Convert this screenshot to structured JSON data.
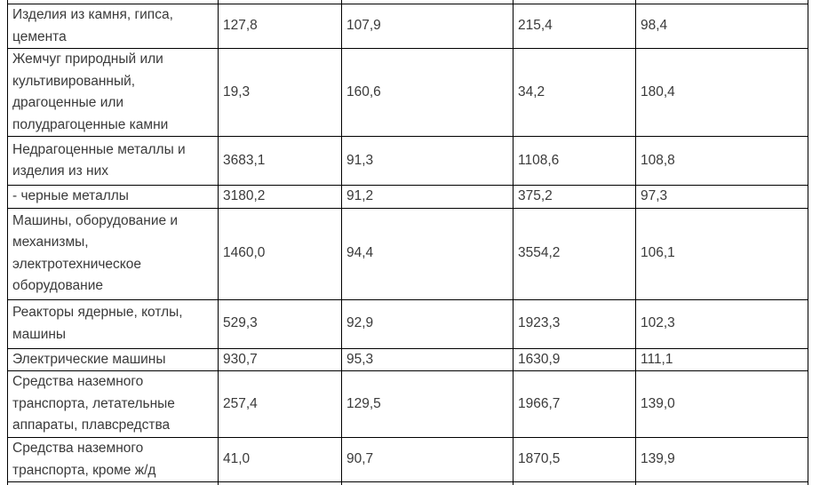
{
  "colors": {
    "background": "#ffffff",
    "border": "#000000",
    "text": "#3a3a3a"
  },
  "table": {
    "description_visible_text_only": "",
    "rows": [
      {
        "category": "Изделия из камня, гипса,\nцемента",
        "values": [
          "127,8",
          "107,9",
          "215,4",
          "98,4"
        ]
      },
      {
        "category": "Жемчуг природный или\nкультивированный,\nдрагоценные или\nполудрагоценные камни",
        "values": [
          "19,3",
          "160,6",
          "34,2",
          "180,4"
        ]
      },
      {
        "category": "Недрагоценные металлы и\nизделия из них",
        "values": [
          "3683,1",
          "91,3",
          "1108,6",
          "108,8"
        ]
      },
      {
        "category": "- черные металлы",
        "values": [
          "3180,2",
          "91,2",
          "375,2",
          "97,3"
        ]
      },
      {
        "category": "Машины, оборудование и\nмеханизмы,\nэлектротехническое\nоборудование",
        "values": [
          "1460,0",
          "94,4",
          "3554,2",
          "106,1"
        ]
      },
      {
        "category": "Реакторы ядерные, котлы,\nмашины",
        "values": [
          "529,3",
          "92,9",
          "1923,3",
          "102,3"
        ]
      },
      {
        "category": "Электрические машины",
        "values": [
          "930,7",
          "95,3",
          "1630,9",
          "111,1"
        ]
      },
      {
        "category": "Средства наземного\nтранспорта, летательные\nаппараты, плавсредства",
        "values": [
          "257,4",
          "129,5",
          "1966,7",
          "139,0"
        ]
      },
      {
        "category": "Средства наземного\nтранспорта, кроме ж/д",
        "values": [
          "41,0",
          "90,7",
          "1870,5",
          "139,9"
        ]
      }
    ]
  }
}
